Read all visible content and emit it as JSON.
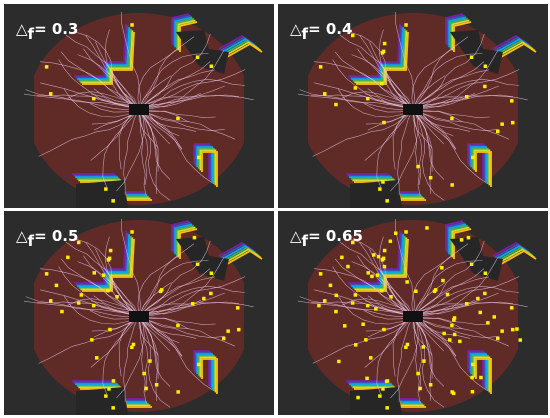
{
  "panels": [
    {
      "symbol": "△",
      "subscript": "f",
      "value": "= 0.3"
    },
    {
      "symbol": "△",
      "subscript": "f",
      "value": "= 0.4"
    },
    {
      "symbol": "△",
      "subscript": "f",
      "value": "= 0.5"
    },
    {
      "symbol": "△",
      "subscript": "f",
      "value": "= 0.65"
    }
  ]
}
